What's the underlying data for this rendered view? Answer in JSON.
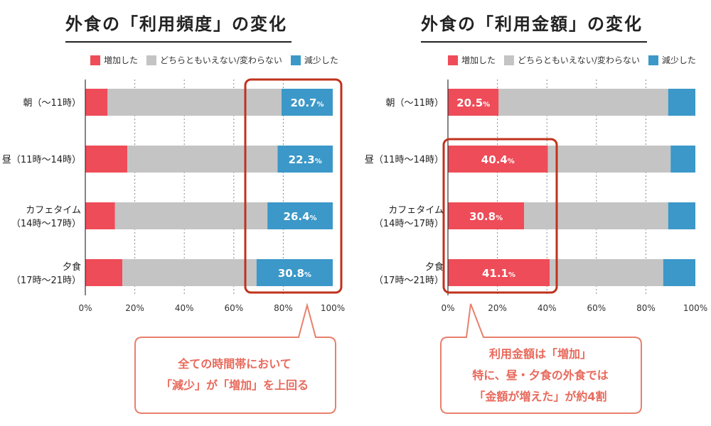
{
  "colors": {
    "increase": "#ee4c58",
    "neutral": "#c4c4c4",
    "decrease": "#3b98c8",
    "highlight": "#c0321c",
    "callout_text": "#e8695b",
    "callout_border": "#e8806d"
  },
  "legend": {
    "increase": "増加した",
    "neutral": "どちらともいえない/変わらない",
    "decrease": "減少した"
  },
  "charts": [
    {
      "title": "外食の「利用頻度」の変化",
      "callout_lines": [
        "全ての時間帯において",
        "「減少」が「増加」を上回る"
      ]
    },
    {
      "title": "外食の「利用金額」の変化",
      "callout_lines": [
        "利用金額は「増加」",
        "特に、昼・夕食の外食では",
        "「金額が増えた」が約4割"
      ]
    }
  ],
  "chart_data": [
    {
      "type": "bar",
      "stacked": true,
      "orientation": "horizontal",
      "title": "外食の「利用頻度」の変化",
      "categories": [
        [
          "朝（〜11時）"
        ],
        [
          "昼（11時〜14時）"
        ],
        [
          "カフェタイム",
          "（14時〜17時）"
        ],
        [
          "夕食",
          "（17時〜21時）"
        ]
      ],
      "series": [
        {
          "name": "増加した",
          "values": [
            9,
            17,
            12,
            15
          ]
        },
        {
          "name": "どちらともいえない/変わらない",
          "values": [
            70.3,
            60.7,
            61.6,
            54.2
          ]
        },
        {
          "name": "減少した",
          "values": [
            20.7,
            22.3,
            26.4,
            30.8
          ]
        }
      ],
      "labels": {
        "series": 2,
        "values": [
          "20.7",
          "22.3",
          "26.4",
          "30.8"
        ],
        "unit": "%"
      },
      "xlim": [
        0,
        100
      ],
      "xticks": [
        "0%",
        "20%",
        "40%",
        "60%",
        "80%",
        "100%"
      ],
      "highlight": "series 減少した"
    },
    {
      "type": "bar",
      "stacked": true,
      "orientation": "horizontal",
      "title": "外食の「利用金額」の変化",
      "categories": [
        [
          "朝（〜11時）"
        ],
        [
          "昼（11時〜14時）"
        ],
        [
          "カフェタイム",
          "（14時〜17時）"
        ],
        [
          "夕食",
          "（17時〜21時）"
        ]
      ],
      "series": [
        {
          "name": "増加した",
          "values": [
            20.5,
            40.4,
            30.8,
            41.1
          ]
        },
        {
          "name": "どちらともいえない/変わらない",
          "values": [
            68.5,
            49.6,
            58.2,
            45.9
          ]
        },
        {
          "name": "減少した",
          "values": [
            11,
            10,
            11,
            13
          ]
        }
      ],
      "labels": {
        "series": 0,
        "values": [
          "20.5",
          "40.4",
          "30.8",
          "41.1"
        ],
        "unit": "%"
      },
      "xlim": [
        0,
        100
      ],
      "xticks": [
        "0%",
        "20%",
        "40%",
        "60%",
        "80%",
        "100%"
      ],
      "highlight": "categories 昼・カフェタイム・夕食 of series 増加した"
    }
  ]
}
